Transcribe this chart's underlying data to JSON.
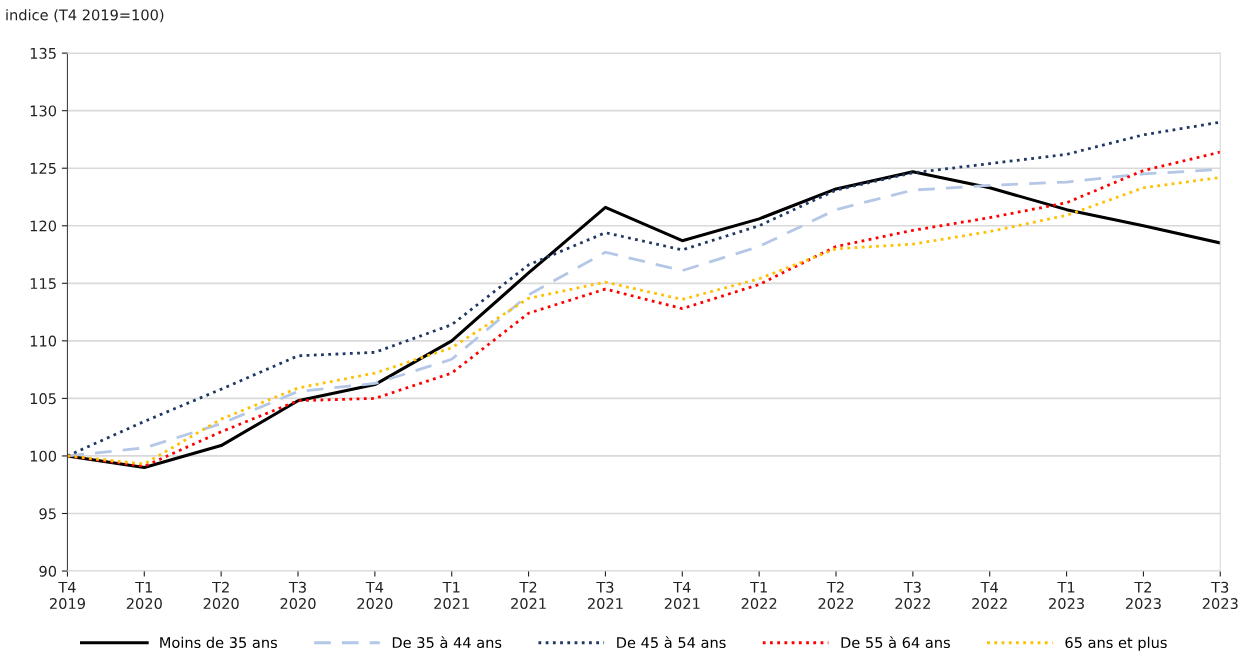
{
  "chart_data": {
    "type": "line",
    "ylabel": "indice (T4 2019=100)",
    "categories": [
      "T4\n2019",
      "T1\n2020",
      "T2\n2020",
      "T3\n2020",
      "T4\n2020",
      "T1\n2021",
      "T2\n2021",
      "T3\n2021",
      "T4\n2021",
      "T1\n2022",
      "T2\n2022",
      "T3\n2022",
      "T4\n2022",
      "T1\n2023",
      "T2\n2023",
      "T3\n2023"
    ],
    "series": [
      {
        "name": "Moins de 35 ans",
        "color": "#000000",
        "line_style": "solid",
        "values": [
          100,
          99.0,
          100.9,
          104.8,
          106.2,
          110.0,
          115.9,
          121.6,
          118.7,
          120.6,
          123.2,
          124.7,
          123.3,
          121.4,
          120.0,
          118.5
        ]
      },
      {
        "name": "De 35 à 44 ans",
        "color": "#b4c7e7",
        "line_style": "dashed",
        "values": [
          100,
          100.7,
          102.8,
          105.6,
          106.3,
          108.4,
          114.0,
          117.7,
          116.1,
          118.2,
          121.4,
          123.1,
          123.5,
          123.8,
          124.5,
          124.9
        ]
      },
      {
        "name": "De 45 à 54 ans",
        "color": "#203864",
        "line_style": "dotted",
        "values": [
          100,
          103.0,
          105.8,
          108.7,
          109.0,
          111.4,
          116.6,
          119.4,
          117.9,
          120.0,
          123.1,
          124.6,
          125.4,
          126.2,
          127.9,
          129.0
        ]
      },
      {
        "name": "De 55 à 64 ans",
        "color": "#ff0000",
        "line_style": "dotted",
        "values": [
          100,
          99.1,
          102.1,
          104.8,
          105.0,
          107.2,
          112.4,
          114.5,
          112.8,
          114.9,
          118.2,
          119.6,
          120.7,
          122.0,
          124.8,
          126.4
        ]
      },
      {
        "name": "65 ans et plus",
        "color": "#ffc000",
        "line_style": "dotted",
        "values": [
          100,
          99.3,
          103.2,
          105.9,
          107.2,
          109.4,
          113.7,
          115.1,
          113.6,
          115.4,
          118.0,
          118.4,
          119.5,
          120.9,
          123.3,
          124.2
        ]
      }
    ],
    "ylim": [
      90,
      135
    ],
    "yticks": [
      90,
      95,
      100,
      105,
      110,
      115,
      120,
      125,
      130,
      135
    ],
    "grid": "y",
    "legend": "bottom",
    "marker": "none"
  }
}
